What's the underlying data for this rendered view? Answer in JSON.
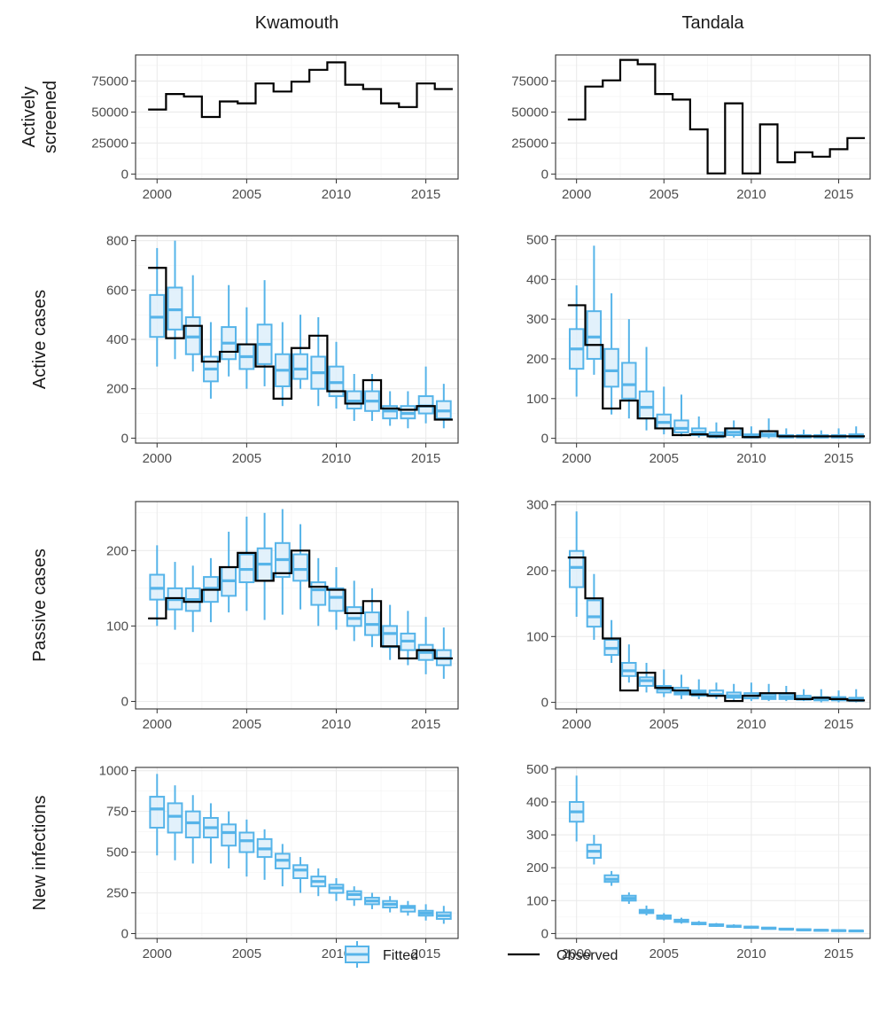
{
  "chart_data": {
    "type": "boxplot-step",
    "columns": [
      "Kwamouth",
      "Tandala"
    ],
    "rows": [
      {
        "key": "screened",
        "label_lines": [
          "Actively",
          "screened"
        ]
      },
      {
        "key": "active",
        "label_lines": [
          "Active cases"
        ]
      },
      {
        "key": "passive",
        "label_lines": [
          "Passive cases"
        ]
      },
      {
        "key": "infections",
        "label_lines": [
          "New infections"
        ]
      }
    ],
    "years": [
      2000,
      2001,
      2002,
      2003,
      2004,
      2005,
      2006,
      2007,
      2008,
      2009,
      2010,
      2011,
      2012,
      2013,
      2014,
      2015,
      2016
    ],
    "x_ticks": [
      2000,
      2005,
      2010,
      2015
    ],
    "xlim": [
      1998.8,
      2016.8
    ],
    "colors": {
      "fitted": "#56B4E9",
      "fitted_fill": "#DDEFFA",
      "observed": "#000000"
    },
    "legend": {
      "fitted": "Fitted",
      "observed": "Observed",
      "position": "bottom"
    },
    "panels": {
      "Kwamouth": {
        "screened": {
          "ylim": [
            -4000,
            96000
          ],
          "y_ticks": [
            0,
            25000,
            50000,
            75000
          ],
          "observed": [
            52000,
            64500,
            62500,
            46000,
            58500,
            57000,
            73000,
            66500,
            74500,
            84000,
            90000,
            72000,
            68500,
            57000,
            54000,
            73000,
            68500
          ]
        },
        "active": {
          "ylim": [
            -20,
            820
          ],
          "y_ticks": [
            0,
            200,
            400,
            600,
            800
          ],
          "observed": [
            690,
            405,
            455,
            310,
            350,
            380,
            290,
            160,
            365,
            415,
            190,
            140,
            235,
            120,
            115,
            130,
            75
          ],
          "fitted": [
            [
              290,
              410,
              490,
              580,
              770
            ],
            [
              320,
              440,
              520,
              610,
              800
            ],
            [
              270,
              340,
              410,
              490,
              660
            ],
            [
              160,
              230,
              280,
              330,
              470
            ],
            [
              250,
              320,
              385,
              450,
              620
            ],
            [
              200,
              280,
              330,
              380,
              530
            ],
            [
              210,
              300,
              380,
              460,
              640
            ],
            [
              130,
              210,
              275,
              340,
              470
            ],
            [
              200,
              240,
              280,
              340,
              500
            ],
            [
              130,
              200,
              265,
              330,
              490
            ],
            [
              120,
              170,
              225,
              290,
              390
            ],
            [
              70,
              120,
              150,
              190,
              260
            ],
            [
              70,
              110,
              150,
              190,
              260
            ],
            [
              50,
              80,
              110,
              130,
              190
            ],
            [
              40,
              80,
              100,
              130,
              190
            ],
            [
              60,
              100,
              130,
              170,
              290
            ],
            [
              40,
              80,
              110,
              150,
              220
            ]
          ]
        },
        "passive": {
          "ylim": [
            -10,
            265
          ],
          "y_ticks": [
            0,
            100,
            200
          ],
          "observed": [
            110,
            137,
            132,
            148,
            178,
            197,
            160,
            170,
            200,
            152,
            148,
            117,
            133,
            73,
            57,
            68,
            57
          ],
          "fitted": [
            [
              100,
              135,
              150,
              168,
              207
            ],
            [
              95,
              122,
              135,
              150,
              185
            ],
            [
              92,
              120,
              135,
              150,
              180
            ],
            [
              105,
              132,
              150,
              165,
              190
            ],
            [
              118,
              140,
              160,
              178,
              225
            ],
            [
              120,
              158,
              175,
              195,
              245
            ],
            [
              108,
              160,
              182,
              203,
              250
            ],
            [
              115,
              165,
              188,
              210,
              255
            ],
            [
              122,
              160,
              175,
              195,
              235
            ],
            [
              100,
              128,
              148,
              158,
              190
            ],
            [
              95,
              120,
              138,
              150,
              178
            ],
            [
              80,
              100,
              110,
              125,
              160
            ],
            [
              72,
              88,
              102,
              118,
              150
            ],
            [
              55,
              72,
              90,
              100,
              128
            ],
            [
              48,
              68,
              80,
              90,
              120
            ],
            [
              36,
              55,
              65,
              75,
              112
            ],
            [
              30,
              48,
              57,
              68,
              98
            ]
          ]
        },
        "infections": {
          "ylim": [
            -30,
            1020
          ],
          "y_ticks": [
            0,
            250,
            500,
            750,
            1000
          ],
          "fitted": [
            [
              480,
              650,
              765,
              840,
              980
            ],
            [
              450,
              620,
              720,
              800,
              910
            ],
            [
              430,
              590,
              680,
              750,
              850
            ],
            [
              430,
              590,
              650,
              710,
              800
            ],
            [
              400,
              540,
              620,
              670,
              750
            ],
            [
              350,
              500,
              570,
              620,
              700
            ],
            [
              330,
              470,
              520,
              580,
              640
            ],
            [
              290,
              400,
              450,
              490,
              550
            ],
            [
              250,
              340,
              390,
              420,
              470
            ],
            [
              230,
              290,
              320,
              350,
              400
            ],
            [
              200,
              250,
              280,
              300,
              340
            ],
            [
              170,
              210,
              240,
              260,
              290
            ],
            [
              150,
              180,
              200,
              220,
              250
            ],
            [
              130,
              160,
              180,
              200,
              230
            ],
            [
              110,
              135,
              160,
              170,
              200
            ],
            [
              80,
              110,
              125,
              140,
              180
            ],
            [
              60,
              90,
              110,
              130,
              170
            ]
          ]
        }
      },
      "Tandala": {
        "screened": {
          "ylim": [
            -4000,
            96000
          ],
          "y_ticks": [
            0,
            25000,
            50000,
            75000
          ],
          "observed": [
            44000,
            70500,
            75500,
            92000,
            88500,
            64500,
            60000,
            36000,
            500,
            57000,
            500,
            40000,
            9500,
            17500,
            14000,
            20000,
            29000
          ]
        },
        "active": {
          "ylim": [
            -12,
            510
          ],
          "y_ticks": [
            0,
            100,
            200,
            300,
            400,
            500
          ],
          "observed": [
            335,
            235,
            75,
            95,
            50,
            25,
            8,
            10,
            5,
            25,
            3,
            18,
            5,
            5,
            5,
            5,
            5
          ],
          "fitted": [
            [
              105,
              175,
              225,
              275,
              385
            ],
            [
              160,
              200,
              255,
              320,
              485
            ],
            [
              60,
              130,
              170,
              225,
              365
            ],
            [
              50,
              100,
              135,
              190,
              300
            ],
            [
              20,
              50,
              78,
              118,
              230
            ],
            [
              10,
              25,
              40,
              60,
              130
            ],
            [
              5,
              15,
              25,
              45,
              110
            ],
            [
              2,
              8,
              15,
              25,
              55
            ],
            [
              0,
              3,
              8,
              15,
              40
            ],
            [
              2,
              8,
              15,
              25,
              45
            ],
            [
              0,
              2,
              5,
              10,
              30
            ],
            [
              0,
              5,
              10,
              18,
              50
            ],
            [
              0,
              2,
              5,
              8,
              25
            ],
            [
              0,
              2,
              5,
              8,
              22
            ],
            [
              0,
              2,
              5,
              8,
              20
            ],
            [
              0,
              2,
              5,
              8,
              25
            ],
            [
              0,
              2,
              5,
              10,
              30
            ]
          ]
        },
        "passive": {
          "ylim": [
            -10,
            305
          ],
          "y_ticks": [
            0,
            100,
            200,
            300
          ],
          "observed": [
            220,
            158,
            97,
            18,
            45,
            22,
            18,
            12,
            10,
            2,
            10,
            14,
            14,
            5,
            7,
            5,
            3
          ],
          "fitted": [
            [
              130,
              175,
              205,
              230,
              290
            ],
            [
              95,
              115,
              130,
              155,
              195
            ],
            [
              60,
              72,
              82,
              95,
              125
            ],
            [
              30,
              40,
              48,
              60,
              88
            ],
            [
              15,
              25,
              33,
              38,
              60
            ],
            [
              8,
              15,
              20,
              25,
              50
            ],
            [
              5,
              12,
              15,
              22,
              42
            ],
            [
              5,
              10,
              15,
              18,
              35
            ],
            [
              5,
              10,
              12,
              18,
              30
            ],
            [
              2,
              7,
              10,
              15,
              28
            ],
            [
              2,
              6,
              10,
              14,
              30
            ],
            [
              2,
              5,
              8,
              12,
              28
            ],
            [
              2,
              5,
              8,
              12,
              25
            ],
            [
              2,
              4,
              6,
              10,
              20
            ],
            [
              0,
              3,
              5,
              8,
              20
            ],
            [
              0,
              3,
              5,
              8,
              18
            ],
            [
              0,
              2,
              4,
              7,
              20
            ]
          ]
        },
        "infections": {
          "ylim": [
            -15,
            505
          ],
          "y_ticks": [
            0,
            100,
            200,
            300,
            400,
            500
          ],
          "fitted": [
            [
              280,
              340,
              370,
              400,
              480
            ],
            [
              210,
              230,
              250,
              270,
              300
            ],
            [
              145,
              157,
              165,
              177,
              190
            ],
            [
              90,
              100,
              107,
              115,
              125
            ],
            [
              55,
              62,
              68,
              72,
              85
            ],
            [
              40,
              45,
              50,
              55,
              62
            ],
            [
              30,
              35,
              38,
              42,
              48
            ],
            [
              25,
              28,
              30,
              33,
              38
            ],
            [
              20,
              23,
              25,
              28,
              32
            ],
            [
              17,
              20,
              22,
              24,
              28
            ],
            [
              15,
              17,
              19,
              21,
              24
            ],
            [
              12,
              14,
              16,
              18,
              20
            ],
            [
              10,
              12,
              13,
              15,
              17
            ],
            [
              9,
              10,
              11,
              13,
              15
            ],
            [
              8,
              9,
              10,
              11,
              13
            ],
            [
              7,
              8,
              9,
              10,
              12
            ],
            [
              6,
              7,
              8,
              9,
              10
            ]
          ]
        }
      }
    }
  }
}
